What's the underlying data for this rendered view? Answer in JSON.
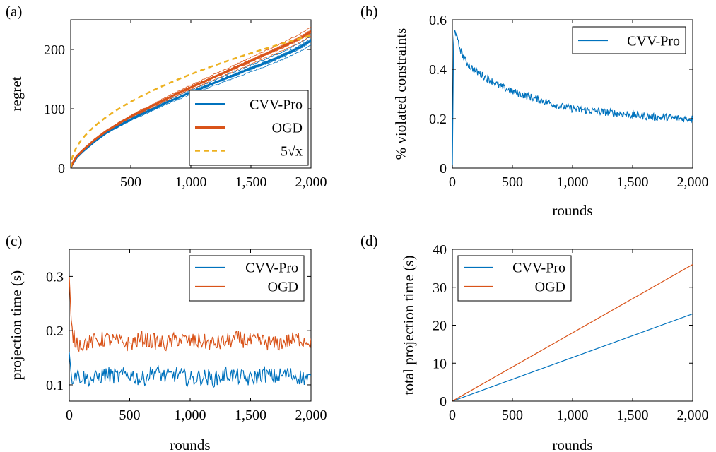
{
  "chart_data": [
    {
      "panel": "(a)",
      "type": "line",
      "xlabel": "",
      "ylabel": "regret",
      "xlim": [
        0,
        2000
      ],
      "ylim": [
        0,
        250
      ],
      "xticks": [
        500,
        1000,
        1500,
        2000
      ],
      "xtick_labels": [
        "500",
        "1,000",
        "1,500",
        "2,000"
      ],
      "yticks": [
        0,
        100,
        200
      ],
      "ytick_labels": [
        "0",
        "100",
        "200"
      ],
      "legend_position": "bottom-right",
      "series": [
        {
          "name": "CVV-Pro",
          "color": "#0072bd",
          "width": 3,
          "dash": "none",
          "x": [
            0,
            10,
            50,
            100,
            200,
            300,
            400,
            500,
            600,
            700,
            800,
            900,
            1000,
            1100,
            1200,
            1300,
            1400,
            1500,
            1600,
            1700,
            1800,
            1900,
            2000
          ],
          "y": [
            0,
            5,
            18,
            28,
            45,
            60,
            71,
            82,
            92,
            101,
            111,
            119,
            128,
            136,
            144,
            152,
            160,
            168,
            176,
            184,
            193,
            203,
            215
          ]
        },
        {
          "name": "OGD",
          "color": "#d95319",
          "width": 3,
          "dash": "none",
          "x": [
            0,
            10,
            50,
            100,
            200,
            300,
            400,
            500,
            600,
            700,
            800,
            900,
            1000,
            1100,
            1200,
            1300,
            1400,
            1500,
            1600,
            1700,
            1800,
            1900,
            2000
          ],
          "y": [
            0,
            6,
            20,
            30,
            48,
            63,
            75,
            87,
            97,
            107,
            117,
            127,
            136,
            145,
            154,
            163,
            172,
            181,
            190,
            199,
            208,
            218,
            230
          ]
        },
        {
          "name": "5√x",
          "color": "#edb120",
          "width": 2.5,
          "dash": "7,5",
          "function": "sqrt",
          "coef": 5,
          "x": [
            0,
            2000
          ]
        }
      ]
    },
    {
      "panel": "(b)",
      "type": "line",
      "xlabel": "rounds",
      "ylabel": "% violated constraints",
      "xlim": [
        0,
        2000
      ],
      "ylim": [
        0,
        0.6
      ],
      "xticks": [
        0,
        500,
        1000,
        1500,
        2000
      ],
      "xtick_labels": [
        "0",
        "500",
        "1,000",
        "1,500",
        "2,000"
      ],
      "yticks": [
        0,
        0.2,
        0.4,
        0.6
      ],
      "ytick_labels": [
        "0",
        "0.2",
        "0.4",
        "0.6"
      ],
      "legend_position": "top-right",
      "series": [
        {
          "name": "CVV-Pro",
          "color": "#0072bd",
          "width": 1.2,
          "dash": "none",
          "x": [
            0,
            10,
            20,
            40,
            60,
            100,
            150,
            200,
            300,
            400,
            500,
            600,
            700,
            800,
            900,
            1000,
            1100,
            1200,
            1300,
            1400,
            1500,
            1600,
            1700,
            1800,
            1900,
            2000
          ],
          "y": [
            0,
            0.5,
            0.57,
            0.52,
            0.49,
            0.44,
            0.41,
            0.39,
            0.36,
            0.33,
            0.31,
            0.295,
            0.28,
            0.265,
            0.25,
            0.24,
            0.235,
            0.23,
            0.225,
            0.22,
            0.215,
            0.21,
            0.205,
            0.205,
            0.2,
            0.2
          ]
        }
      ]
    },
    {
      "panel": "(c)",
      "type": "line",
      "xlabel": "rounds",
      "ylabel": "projection time (s)",
      "xlim": [
        0,
        2000
      ],
      "ylim": [
        0.07,
        0.35
      ],
      "xticks": [
        0,
        500,
        1000,
        1500,
        2000
      ],
      "xtick_labels": [
        "0",
        "500",
        "1,000",
        "1,500",
        "2,000"
      ],
      "yticks": [
        0.1,
        0.2,
        0.3
      ],
      "ytick_labels": [
        "0.1",
        "0.2",
        "0.3"
      ],
      "legend_position": "top-right",
      "series": [
        {
          "name": "CVV-Pro",
          "color": "#0072bd",
          "width": 1.2,
          "dash": "none",
          "x": [
            0,
            20,
            50,
            100,
            200,
            300,
            400,
            500,
            600,
            700,
            800,
            900,
            1000,
            1100,
            1200,
            1300,
            1400,
            1500,
            1600,
            1700,
            1800,
            1900,
            2000
          ],
          "y": [
            0.16,
            0.11,
            0.12,
            0.115,
            0.11,
            0.12,
            0.115,
            0.12,
            0.11,
            0.125,
            0.115,
            0.12,
            0.11,
            0.115,
            0.11,
            0.12,
            0.115,
            0.11,
            0.12,
            0.115,
            0.12,
            0.115,
            0.11
          ]
        },
        {
          "name": "OGD",
          "color": "#d95319",
          "width": 1.2,
          "dash": "none",
          "x": [
            0,
            20,
            50,
            100,
            200,
            300,
            400,
            500,
            600,
            700,
            800,
            900,
            1000,
            1100,
            1200,
            1300,
            1400,
            1500,
            1600,
            1700,
            1800,
            1900,
            2000
          ],
          "y": [
            0.3,
            0.2,
            0.18,
            0.175,
            0.18,
            0.185,
            0.18,
            0.175,
            0.185,
            0.18,
            0.175,
            0.185,
            0.18,
            0.18,
            0.175,
            0.18,
            0.185,
            0.18,
            0.18,
            0.175,
            0.18,
            0.185,
            0.18
          ]
        }
      ]
    },
    {
      "panel": "(d)",
      "type": "line",
      "xlabel": "rounds",
      "ylabel": "total projection time (s)",
      "xlim": [
        0,
        2000
      ],
      "ylim": [
        0,
        40
      ],
      "xticks": [
        0,
        500,
        1000,
        1500,
        2000
      ],
      "xtick_labels": [
        "0",
        "500",
        "1,000",
        "1,500",
        "2,000"
      ],
      "yticks": [
        0,
        10,
        20,
        30,
        40
      ],
      "ytick_labels": [
        "0",
        "10",
        "20",
        "30",
        "40"
      ],
      "legend_position": "top-left",
      "series": [
        {
          "name": "CVV-Pro",
          "color": "#0072bd",
          "width": 1.2,
          "dash": "none",
          "x": [
            0,
            2000
          ],
          "y": [
            0,
            23
          ]
        },
        {
          "name": "OGD",
          "color": "#d95319",
          "width": 1.2,
          "dash": "none",
          "x": [
            0,
            2000
          ],
          "y": [
            0,
            36
          ]
        }
      ]
    }
  ]
}
